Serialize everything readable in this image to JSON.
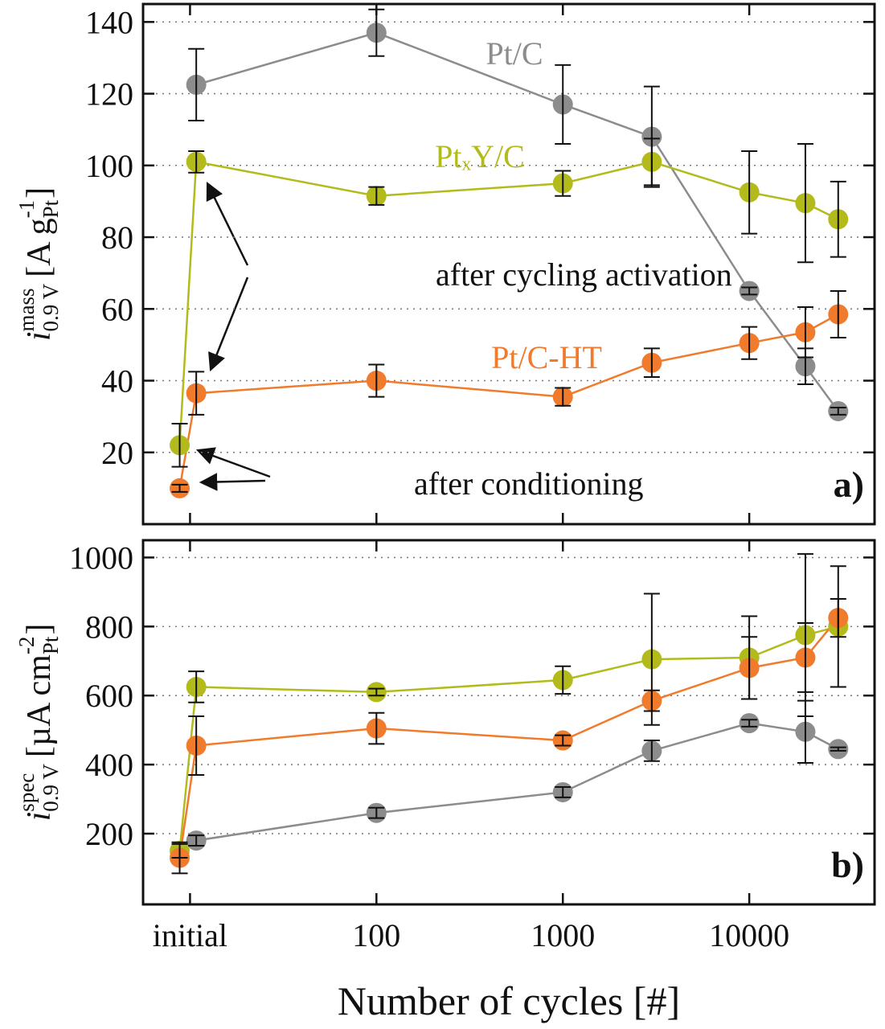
{
  "chart_data": [
    {
      "type": "line",
      "panel_label": "a)",
      "ylabel": {
        "symbol": "i",
        "sub": "0.9 V",
        "sup": "mass",
        "unit": "[A g",
        "unit_sub": "Pt",
        "unit_sup": "-1",
        "close": "]"
      },
      "xscale": "log",
      "xlim": [
        5.6,
        47000
      ],
      "xticks": [
        10,
        100,
        1000,
        10000
      ],
      "xtick_labels": false,
      "ylim": [
        0,
        145
      ],
      "yticks": [
        20,
        40,
        60,
        80,
        100,
        120,
        140
      ],
      "grid": true,
      "x": [
        8.8,
        10.8,
        100,
        1000,
        3000,
        10000,
        20000,
        30000
      ],
      "series": [
        {
          "name": "Pt/C",
          "color": "#8c8c8c",
          "values": [
            null,
            122.5,
            137,
            117,
            108,
            65,
            44,
            31.5
          ],
          "errors": [
            null,
            10,
            6.5,
            11,
            14,
            1,
            5,
            1
          ]
        },
        {
          "name": "PtₓY/C",
          "color": "#b3bb1c",
          "values": [
            22,
            101,
            91.5,
            95,
            101,
            92.5,
            89.5,
            85
          ],
          "errors": [
            6,
            3,
            2.5,
            3.5,
            6.5,
            11.5,
            16.5,
            10.5
          ]
        },
        {
          "name": "Pt/C-HT",
          "color": "#f07b2d",
          "values": [
            10,
            36.5,
            40,
            35.5,
            45,
            50.5,
            53.5,
            58.5
          ],
          "errors": [
            1,
            6,
            4.5,
            2.5,
            4,
            4.5,
            7,
            6.5
          ]
        }
      ],
      "annotations": [
        {
          "text": "after cycling activation"
        },
        {
          "text": "after conditioning"
        }
      ]
    },
    {
      "type": "line",
      "panel_label": "b)",
      "ylabel": {
        "symbol": "i",
        "sub": "0.9 V",
        "sup": "spec",
        "unit": "[µA cm",
        "unit_sub": "Pt",
        "unit_sup": "-2",
        "close": "]"
      },
      "xlabel": "Number of cycles [#]",
      "xscale": "log",
      "xlim": [
        5.6,
        47000
      ],
      "xticks": [
        {
          "value": 10,
          "label": "initial"
        },
        100,
        1000,
        10000
      ],
      "xtick_labels": true,
      "ylim": [
        -5,
        1050
      ],
      "yticks": [
        200,
        400,
        600,
        800,
        1000
      ],
      "grid": true,
      "x": [
        8.8,
        10.8,
        100,
        1000,
        3000,
        10000,
        20000,
        30000
      ],
      "series": [
        {
          "color": "#8c8c8c",
          "values": [
            null,
            180,
            260,
            320,
            440,
            520,
            495,
            445
          ],
          "errors": [
            null,
            15,
            15,
            15,
            30,
            10,
            90,
            5
          ]
        },
        {
          "color": "#b3bb1c",
          "values": [
            150,
            625,
            610,
            645,
            705,
            710,
            775,
            800
          ],
          "errors": [
            20,
            45,
            10,
            40,
            190,
            120,
            235,
            175
          ]
        },
        {
          "color": "#f07b2d",
          "values": [
            130,
            455,
            505,
            470,
            585,
            680,
            710,
            825
          ],
          "errors": [
            45,
            85,
            45,
            15,
            30,
            90,
            100,
            55
          ]
        }
      ]
    }
  ]
}
